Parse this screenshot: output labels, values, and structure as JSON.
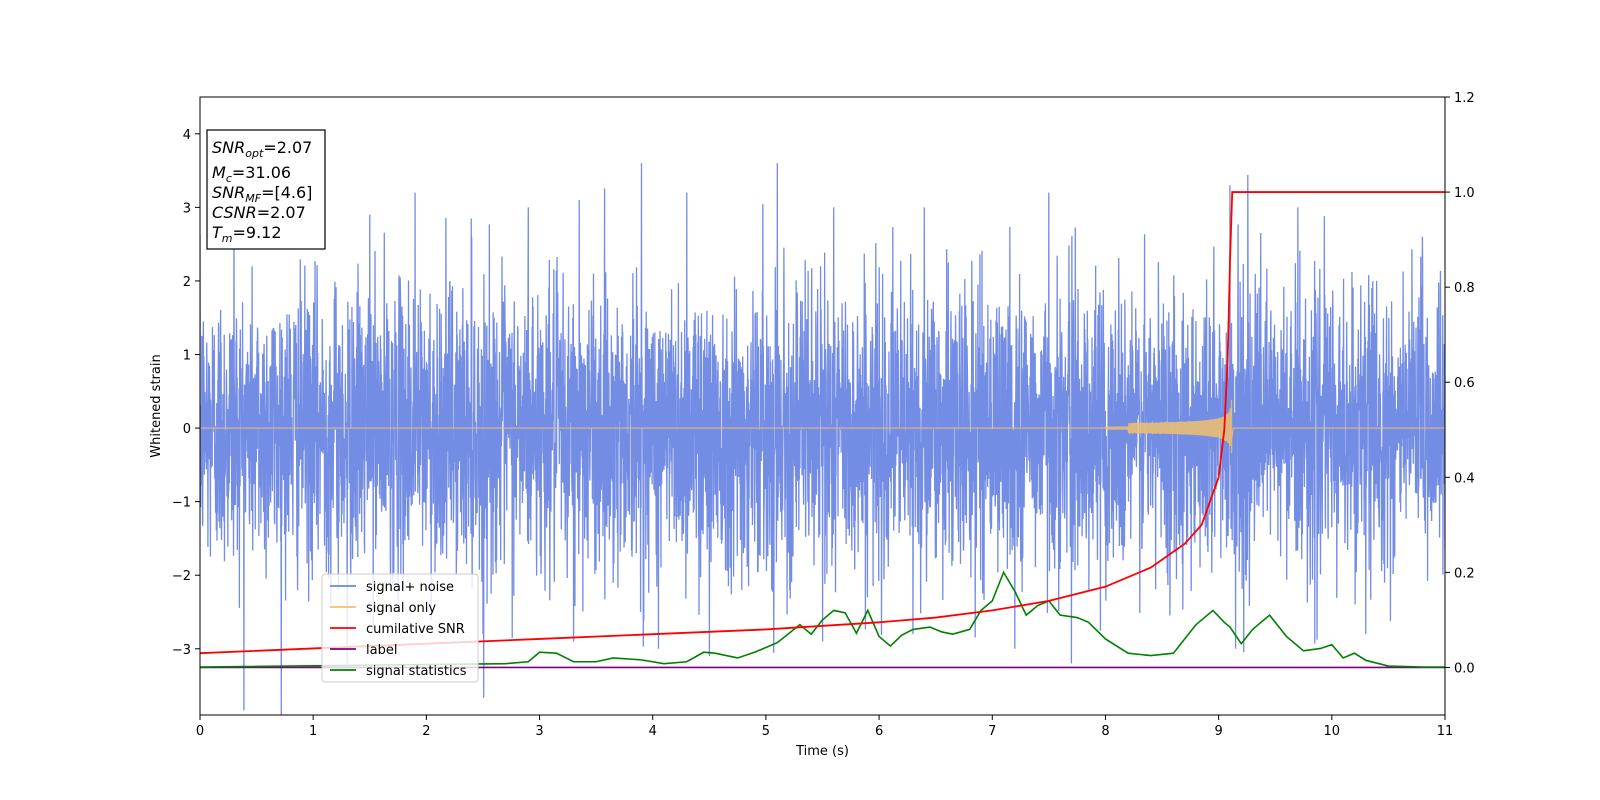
{
  "chart_data": {
    "type": "line",
    "xlabel": "Time (s)",
    "ylabel": "Whitened strain",
    "xlim": [
      0,
      11
    ],
    "ylim": [
      -3.9,
      4.5
    ],
    "y2lim": [
      -0.1,
      1.2
    ],
    "x_ticks": [
      0,
      1,
      2,
      3,
      4,
      5,
      6,
      7,
      8,
      9,
      10,
      11
    ],
    "y_ticks": [
      -3,
      -2,
      -1,
      0,
      1,
      2,
      3,
      4
    ],
    "y2_ticks": [
      0.0,
      0.2,
      0.4,
      0.6,
      0.8,
      1.0,
      1.2
    ],
    "legend_location": "lower-left",
    "colors": {
      "signal_noise": "#6b86e3",
      "signal_only": "#f0c070",
      "cumulative_snr": "#ff0000",
      "label": "#800080",
      "signal_statistics": "#008000"
    },
    "info_box": {
      "lines": [
        {
          "main": "SNR",
          "sub": "opt",
          "rest": "=2.07"
        },
        {
          "main": "M",
          "sub": "c",
          "rest": "=31.06"
        },
        {
          "main": "SNR",
          "sub": "MF",
          "rest": "=[4.6]"
        },
        {
          "main": "CSNR",
          "sub": "",
          "rest": "=2.07"
        },
        {
          "main": "T",
          "sub": "m",
          "rest": "=9.12"
        }
      ]
    },
    "series": [
      {
        "name": "signal+ noise",
        "axis": "left",
        "description_values": "whitened noise, approx. standard deviation 1.0 over t in [0, 11]",
        "std": 1.0,
        "extreme_peaks": [
          [
            0.3,
            2.8
          ],
          [
            1.5,
            2.9
          ],
          [
            1.9,
            3.2
          ],
          [
            2.4,
            2.6
          ],
          [
            2.9,
            3.0
          ],
          [
            3.35,
            3.1
          ],
          [
            3.9,
            3.6
          ],
          [
            4.3,
            3.2
          ],
          [
            5.1,
            3.6
          ],
          [
            5.6,
            3.0
          ],
          [
            6.4,
            3.0
          ],
          [
            7.2,
            3.0
          ],
          [
            7.5,
            3.2
          ],
          [
            9.1,
            3.3
          ],
          [
            9.7,
            3.0
          ],
          [
            10.3,
            3.0
          ],
          [
            10.8,
            2.6
          ],
          [
            1.3,
            -3.2
          ],
          [
            2.5,
            -2.8
          ],
          [
            3.3,
            -2.9
          ],
          [
            4.05,
            -3.0
          ],
          [
            4.5,
            -3.1
          ],
          [
            5.5,
            -2.9
          ],
          [
            6.3,
            -2.8
          ],
          [
            7.2,
            -3.0
          ],
          [
            7.7,
            -3.2
          ],
          [
            9.15,
            -3.0
          ],
          [
            10.3,
            -2.8
          ]
        ]
      },
      {
        "name": "signal only",
        "axis": "left",
        "chirp_end_time": 9.12,
        "chirp_peak_amplitude": 0.45,
        "values_description": "zero until about t = 8.2, then an oscillating chirp whose amplitude grows to about 0.45 at t = 9.12 and drops to zero"
      },
      {
        "name": "cumilative SNR",
        "axis": "right",
        "x": [
          0,
          1,
          2,
          3,
          4,
          5,
          6,
          6.5,
          7,
          7.5,
          8,
          8.4,
          8.7,
          8.85,
          9.0,
          9.05,
          9.08,
          9.1,
          9.12,
          11
        ],
        "y": [
          0.03,
          0.04,
          0.05,
          0.06,
          0.07,
          0.08,
          0.095,
          0.105,
          0.12,
          0.14,
          0.17,
          0.21,
          0.26,
          0.3,
          0.4,
          0.5,
          0.65,
          0.85,
          1.0,
          1.0
        ]
      },
      {
        "name": "label",
        "axis": "right",
        "x": [
          0,
          11
        ],
        "y": [
          0,
          0
        ]
      },
      {
        "name": "signal statistics",
        "axis": "right",
        "x": [
          0,
          2.7,
          2.9,
          3.0,
          3.15,
          3.3,
          3.5,
          3.65,
          3.9,
          4.1,
          4.3,
          4.45,
          4.55,
          4.75,
          4.9,
          5.1,
          5.3,
          5.4,
          5.5,
          5.6,
          5.7,
          5.8,
          5.9,
          6.0,
          6.1,
          6.2,
          6.3,
          6.45,
          6.55,
          6.65,
          6.8,
          6.9,
          7.0,
          7.1,
          7.2,
          7.3,
          7.4,
          7.5,
          7.6,
          7.75,
          7.85,
          8.0,
          8.2,
          8.4,
          8.6,
          8.8,
          8.95,
          9.05,
          9.1,
          9.2,
          9.3,
          9.45,
          9.6,
          9.75,
          9.9,
          10.0,
          10.1,
          10.2,
          10.3,
          10.5,
          10.8,
          11
        ],
        "y": [
          0.001,
          0.008,
          0.012,
          0.032,
          0.03,
          0.012,
          0.012,
          0.02,
          0.016,
          0.008,
          0.012,
          0.032,
          0.03,
          0.02,
          0.032,
          0.052,
          0.09,
          0.07,
          0.1,
          0.12,
          0.115,
          0.072,
          0.12,
          0.065,
          0.045,
          0.068,
          0.08,
          0.085,
          0.075,
          0.07,
          0.08,
          0.12,
          0.14,
          0.2,
          0.16,
          0.11,
          0.13,
          0.14,
          0.11,
          0.105,
          0.095,
          0.06,
          0.03,
          0.025,
          0.03,
          0.09,
          0.12,
          0.095,
          0.085,
          0.05,
          0.08,
          0.11,
          0.065,
          0.035,
          0.04,
          0.048,
          0.02,
          0.03,
          0.015,
          0.003,
          0.001,
          0.001
        ]
      }
    ]
  }
}
